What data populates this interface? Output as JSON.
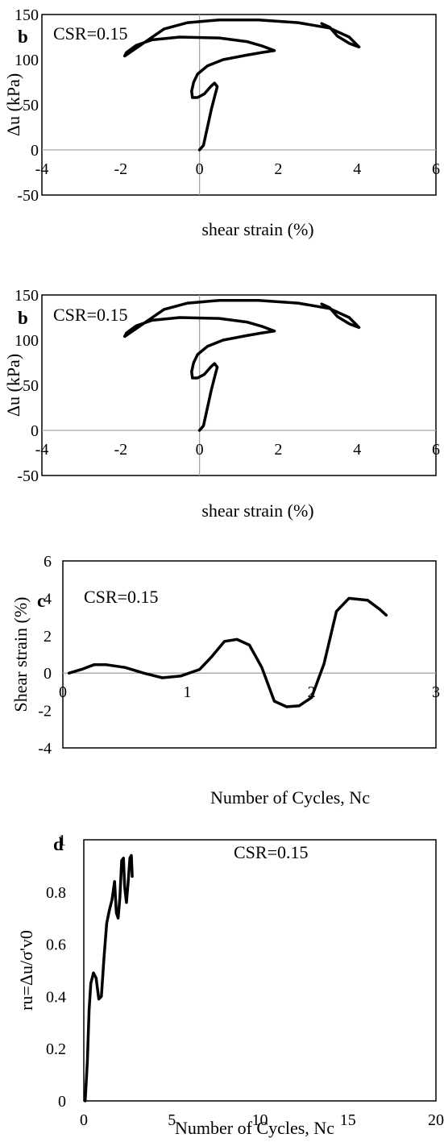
{
  "chart_data": [
    {
      "type": "line",
      "panel_label": "b",
      "annotation": "CSR=0.15",
      "xlabel": "shear strain (%)",
      "ylabel": "Δu (kPa)",
      "xlim": [
        -4,
        6
      ],
      "ylim": [
        -50,
        150
      ],
      "x_ticks": [
        -4,
        -2,
        0,
        2,
        4,
        6
      ],
      "y_ticks": [
        -50,
        0,
        50,
        100,
        150
      ],
      "x_tick_labels": [
        "-4",
        "-2",
        "0",
        "2",
        "4",
        "6"
      ],
      "y_tick_labels": [
        "-50",
        "0",
        "50",
        "100",
        "150"
      ],
      "points": [
        [
          0,
          0
        ],
        [
          0.1,
          5
        ],
        [
          0.2,
          25
        ],
        [
          0.3,
          45
        ],
        [
          0.4,
          62
        ],
        [
          0.45,
          70
        ],
        [
          0.38,
          74
        ],
        [
          0.28,
          70
        ],
        [
          0.12,
          62
        ],
        [
          -0.05,
          58
        ],
        [
          -0.18,
          58
        ],
        [
          -0.2,
          65
        ],
        [
          -0.15,
          75
        ],
        [
          -0.05,
          84
        ],
        [
          0.2,
          93
        ],
        [
          0.6,
          100
        ],
        [
          1.2,
          105
        ],
        [
          1.6,
          108
        ],
        [
          1.9,
          110
        ],
        [
          1.6,
          115
        ],
        [
          1.2,
          120
        ],
        [
          0.5,
          124
        ],
        [
          -0.5,
          125
        ],
        [
          -1.2,
          122
        ],
        [
          -1.6,
          116
        ],
        [
          -1.85,
          108
        ],
        [
          -1.9,
          104
        ],
        [
          -1.7,
          110
        ],
        [
          -1.3,
          122
        ],
        [
          -0.9,
          134
        ],
        [
          -0.3,
          141
        ],
        [
          0.5,
          144
        ],
        [
          1.5,
          144
        ],
        [
          2.5,
          141
        ],
        [
          3.3,
          135
        ],
        [
          3.8,
          125
        ],
        [
          4.05,
          114
        ],
        [
          3.8,
          118
        ],
        [
          3.5,
          126
        ],
        [
          3.3,
          136
        ],
        [
          3.1,
          140
        ]
      ]
    },
    {
      "type": "line",
      "panel_label": "b",
      "annotation": "CSR=0.15",
      "xlabel": "shear strain (%)",
      "ylabel": "Δu (kPa)",
      "xlim": [
        -4,
        6
      ],
      "ylim": [
        -50,
        150
      ],
      "x_ticks": [
        -4,
        -2,
        0,
        2,
        4,
        6
      ],
      "y_ticks": [
        -50,
        0,
        50,
        100,
        150
      ],
      "x_tick_labels": [
        "-4",
        "-2",
        "0",
        "2",
        "4",
        "6"
      ],
      "y_tick_labels": [
        "-50",
        "0",
        "50",
        "100",
        "150"
      ],
      "points": [
        [
          0,
          0
        ],
        [
          0.1,
          5
        ],
        [
          0.2,
          25
        ],
        [
          0.3,
          45
        ],
        [
          0.4,
          62
        ],
        [
          0.45,
          70
        ],
        [
          0.38,
          74
        ],
        [
          0.28,
          70
        ],
        [
          0.12,
          62
        ],
        [
          -0.05,
          58
        ],
        [
          -0.18,
          58
        ],
        [
          -0.2,
          65
        ],
        [
          -0.15,
          75
        ],
        [
          -0.05,
          84
        ],
        [
          0.2,
          93
        ],
        [
          0.6,
          100
        ],
        [
          1.2,
          105
        ],
        [
          1.6,
          108
        ],
        [
          1.9,
          110
        ],
        [
          1.6,
          115
        ],
        [
          1.2,
          120
        ],
        [
          0.5,
          124
        ],
        [
          -0.5,
          125
        ],
        [
          -1.2,
          122
        ],
        [
          -1.6,
          116
        ],
        [
          -1.85,
          108
        ],
        [
          -1.9,
          104
        ],
        [
          -1.7,
          110
        ],
        [
          -1.3,
          122
        ],
        [
          -0.9,
          134
        ],
        [
          -0.3,
          141
        ],
        [
          0.5,
          144
        ],
        [
          1.5,
          144
        ],
        [
          2.5,
          141
        ],
        [
          3.3,
          135
        ],
        [
          3.8,
          125
        ],
        [
          4.05,
          114
        ],
        [
          3.8,
          118
        ],
        [
          3.5,
          126
        ],
        [
          3.3,
          136
        ],
        [
          3.1,
          140
        ]
      ]
    },
    {
      "type": "line",
      "panel_label": "c",
      "annotation": "CSR=0.15",
      "xlabel": "Number of Cycles, Nc",
      "ylabel": "Shear strain (%)",
      "xlim": [
        0,
        3
      ],
      "ylim": [
        -4,
        6
      ],
      "x_ticks": [
        0,
        1,
        2,
        3
      ],
      "y_ticks": [
        -4,
        -2,
        0,
        2,
        4,
        6
      ],
      "x_tick_labels": [
        "0",
        "1",
        "2",
        "3"
      ],
      "y_tick_labels": [
        "-4",
        "-2",
        "0",
        "2",
        "4",
        "6"
      ],
      "points": [
        [
          0.05,
          0
        ],
        [
          0.15,
          0.2
        ],
        [
          0.25,
          0.45
        ],
        [
          0.35,
          0.45
        ],
        [
          0.5,
          0.3
        ],
        [
          0.65,
          0
        ],
        [
          0.8,
          -0.25
        ],
        [
          0.95,
          -0.15
        ],
        [
          1.1,
          0.2
        ],
        [
          1.2,
          0.9
        ],
        [
          1.3,
          1.7
        ],
        [
          1.4,
          1.8
        ],
        [
          1.5,
          1.5
        ],
        [
          1.6,
          0.3
        ],
        [
          1.7,
          -1.5
        ],
        [
          1.8,
          -1.8
        ],
        [
          1.9,
          -1.75
        ],
        [
          2.0,
          -1.3
        ],
        [
          2.1,
          0.5
        ],
        [
          2.2,
          3.3
        ],
        [
          2.3,
          4.0
        ],
        [
          2.45,
          3.9
        ],
        [
          2.55,
          3.4
        ],
        [
          2.6,
          3.1
        ]
      ]
    },
    {
      "type": "line",
      "panel_label": "d",
      "annotation": "CSR=0.15",
      "xlabel": "Number of Cycles, Nc",
      "ylabel": "ru=Δu/σ'v0",
      "xlim": [
        0,
        20
      ],
      "ylim": [
        0,
        1
      ],
      "x_ticks": [
        0,
        5,
        10,
        15,
        20
      ],
      "y_ticks": [
        0,
        0.2,
        0.4,
        0.6,
        0.8,
        1
      ],
      "x_tick_labels": [
        "0",
        "5",
        "10",
        "15",
        "20"
      ],
      "y_tick_labels": [
        "0",
        "0.2",
        "0.4",
        "0.6",
        "0.8",
        "1"
      ],
      "points": [
        [
          0.08,
          0
        ],
        [
          0.2,
          0.15
        ],
        [
          0.3,
          0.35
        ],
        [
          0.4,
          0.45
        ],
        [
          0.55,
          0.49
        ],
        [
          0.7,
          0.47
        ],
        [
          0.85,
          0.39
        ],
        [
          1.0,
          0.4
        ],
        [
          1.15,
          0.55
        ],
        [
          1.3,
          0.68
        ],
        [
          1.45,
          0.73
        ],
        [
          1.6,
          0.77
        ],
        [
          1.75,
          0.84
        ],
        [
          1.85,
          0.72
        ],
        [
          1.95,
          0.7
        ],
        [
          2.05,
          0.78
        ],
        [
          2.15,
          0.92
        ],
        [
          2.25,
          0.93
        ],
        [
          2.32,
          0.82
        ],
        [
          2.42,
          0.76
        ],
        [
          2.52,
          0.84
        ],
        [
          2.62,
          0.93
        ],
        [
          2.7,
          0.94
        ],
        [
          2.75,
          0.86
        ]
      ]
    }
  ]
}
